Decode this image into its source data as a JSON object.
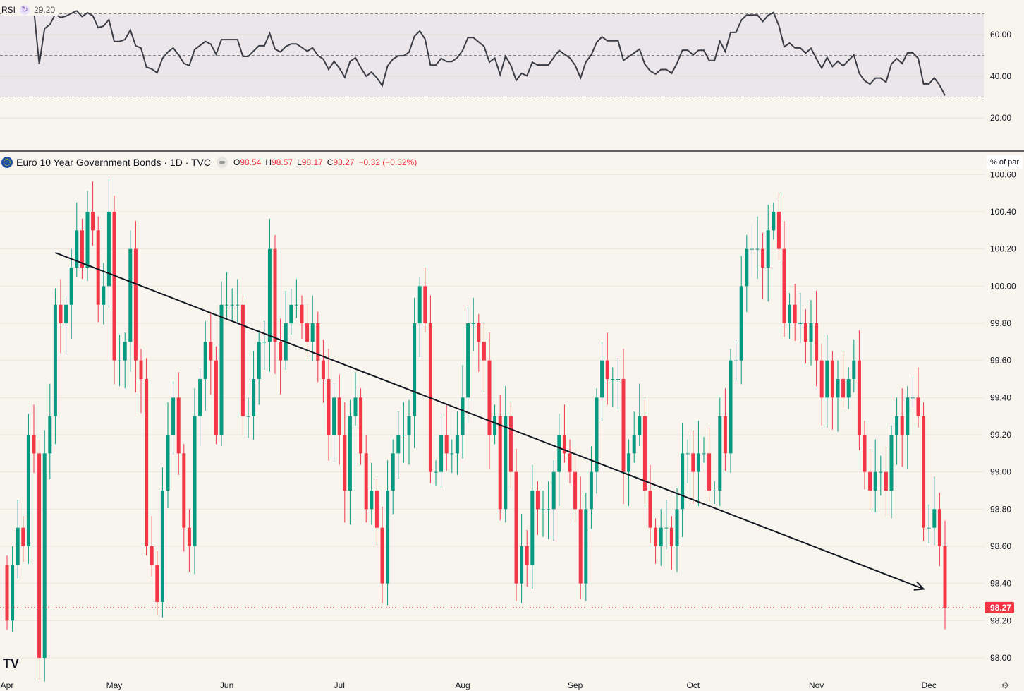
{
  "rsi_legend": {
    "label": "RSI",
    "value": "29.20",
    "icon": "sync-icon"
  },
  "legend": {
    "title": "Euro 10 Year Government Bonds · 1D · TVC",
    "open_label": "O",
    "open": "98.54",
    "high_label": "H",
    "high": "98.57",
    "low_label": "L",
    "low": "98.17",
    "close_label": "C",
    "close": "98.27",
    "change": "−0.32 (−0.32%)"
  },
  "unit_label": "% of par",
  "last_price_label": "98.27",
  "colors": {
    "up": "#089981",
    "down": "#f23645",
    "bg": "#f8f5ef",
    "rsi_line": "#3a3d46",
    "rsi_band": "#ebe6ea"
  },
  "chart_data": [
    {
      "type": "candlestick",
      "title": "Euro 10 Year Government Bonds · 1D · TVC",
      "ylabel": "% of par",
      "ylim": [
        97.9,
        100.7
      ],
      "yticks": [
        "98.00",
        "98.20",
        "98.40",
        "98.60",
        "98.80",
        "99.00",
        "99.20",
        "99.40",
        "99.60",
        "99.80",
        "100.00",
        "100.20",
        "100.40",
        "100.60"
      ],
      "xticks": [
        {
          "label": "Apr",
          "index": 0
        },
        {
          "label": "May",
          "index": 20
        },
        {
          "label": "Jun",
          "index": 41
        },
        {
          "label": "Jul",
          "index": 62
        },
        {
          "label": "Aug",
          "index": 85
        },
        {
          "label": "Sep",
          "index": 106
        },
        {
          "label": "Oct",
          "index": 128
        },
        {
          "label": "Nov",
          "index": 151
        },
        {
          "label": "Dec",
          "index": 172
        }
      ],
      "first_open": 98.5,
      "closes": [
        98.2,
        98.5,
        98.7,
        98.6,
        99.2,
        99.1,
        98.0,
        99.1,
        99.3,
        99.9,
        99.8,
        99.9,
        100.1,
        100.3,
        100.1,
        100.4,
        100.3,
        99.9,
        100.0,
        100.4,
        99.6,
        99.6,
        99.7,
        100.2,
        99.6,
        99.5,
        98.6,
        98.5,
        98.3,
        98.9,
        99.2,
        99.4,
        99.1,
        98.7,
        98.6,
        99.3,
        99.5,
        99.7,
        99.6,
        99.2,
        99.9,
        99.9,
        99.9,
        99.9,
        99.3,
        99.3,
        99.5,
        99.7,
        99.7,
        100.2,
        99.7,
        99.6,
        99.8,
        99.9,
        99.9,
        99.8,
        99.7,
        99.8,
        99.6,
        99.5,
        99.2,
        99.4,
        99.2,
        98.9,
        99.3,
        99.4,
        99.1,
        98.8,
        98.9,
        98.7,
        98.4,
        98.9,
        99.1,
        99.2,
        99.2,
        99.3,
        99.8,
        100.0,
        99.8,
        99.0,
        99.0,
        99.2,
        99.1,
        99.1,
        99.2,
        99.4,
        99.8,
        99.8,
        99.7,
        99.6,
        99.2,
        99.3,
        98.8,
        99.3,
        99.0,
        98.4,
        98.6,
        98.5,
        98.9,
        98.8,
        98.8,
        98.8,
        99.0,
        99.2,
        99.1,
        99.0,
        98.8,
        98.4,
        98.8,
        99.0,
        99.4,
        99.6,
        99.5,
        99.5,
        99.5,
        99.0,
        99.1,
        99.2,
        99.3,
        98.9,
        98.7,
        98.6,
        98.7,
        98.7,
        98.6,
        98.8,
        99.1,
        99.1,
        99.0,
        99.1,
        99.1,
        98.9,
        98.9,
        99.3,
        99.1,
        99.6,
        99.6,
        100.0,
        100.2,
        100.2,
        100.2,
        100.1,
        100.3,
        100.4,
        100.2,
        99.8,
        99.9,
        99.8,
        99.8,
        99.7,
        99.8,
        99.6,
        99.4,
        99.6,
        99.4,
        99.5,
        99.4,
        99.5,
        99.6,
        99.2,
        99.0,
        98.9,
        99.0,
        99.0,
        98.9,
        99.2,
        99.3,
        99.2,
        99.4,
        99.4,
        99.3,
        98.7,
        98.7,
        98.8,
        98.6,
        98.27
      ],
      "trendline": {
        "start": {
          "index": 9,
          "price": 100.18
        },
        "end": {
          "index": 171,
          "price": 98.37
        }
      }
    },
    {
      "type": "line",
      "title": "RSI",
      "period": 14,
      "ylim": [
        8,
        72
      ],
      "yticks": [
        "20.00",
        "40.00",
        "60.00"
      ],
      "bands": [
        30,
        50,
        70
      ]
    }
  ]
}
